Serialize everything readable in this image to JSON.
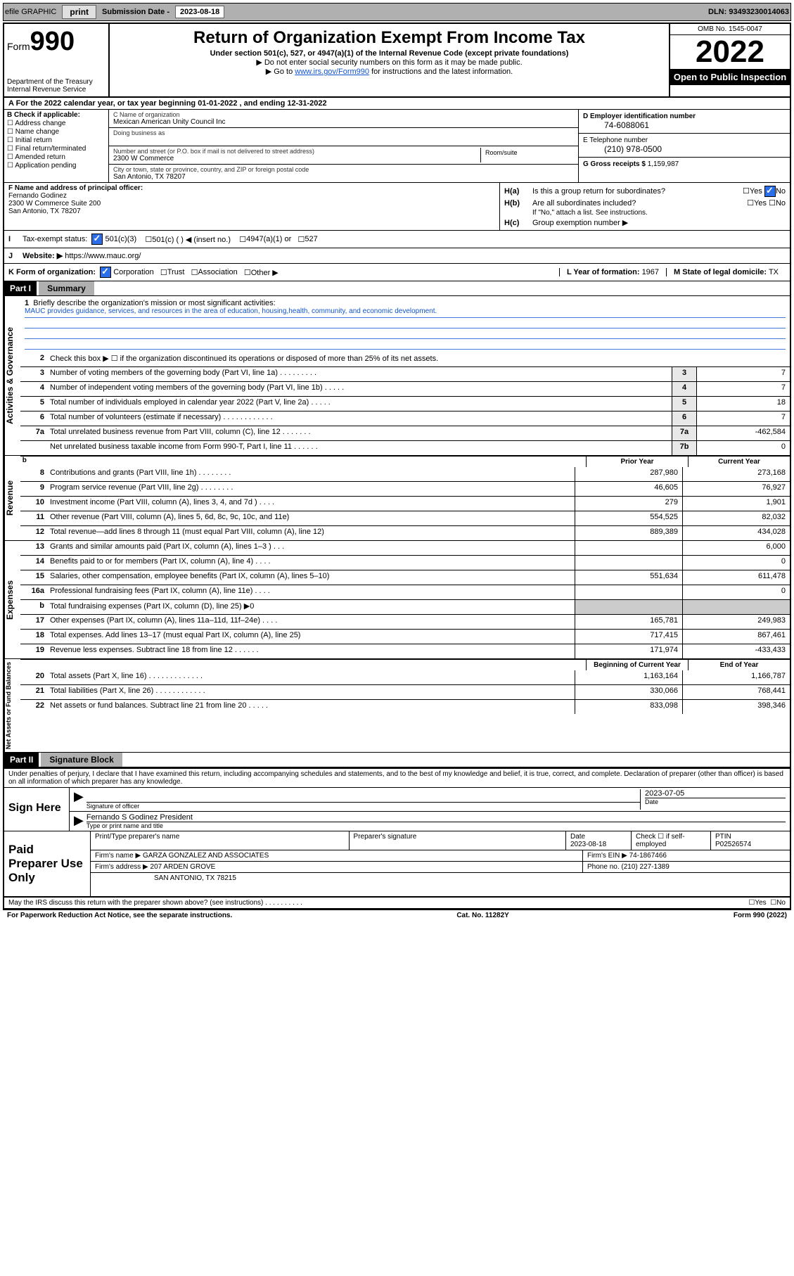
{
  "toolbar": {
    "efile": "efile GRAPHIC",
    "print": "print",
    "sub_label": "Submission Date -",
    "sub_date": "2023-08-18",
    "dln": "DLN: 93493230014063"
  },
  "header": {
    "form_word": "Form",
    "form_num": "990",
    "dept": "Department of the Treasury",
    "irs": "Internal Revenue Service",
    "title": "Return of Organization Exempt From Income Tax",
    "subtitle": "Under section 501(c), 527, or 4947(a)(1) of the Internal Revenue Code (except private foundations)",
    "note1": "▶ Do not enter social security numbers on this form as it may be made public.",
    "note2_pre": "▶ Go to ",
    "note2_link": "www.irs.gov/Form990",
    "note2_post": " for instructions and the latest information.",
    "omb": "OMB No. 1545-0047",
    "year": "2022",
    "open": "Open to Public Inspection"
  },
  "row_a": "A For the 2022 calendar year, or tax year beginning 01-01-2022   , and ending 12-31-2022",
  "col_b": {
    "title": "B Check if applicable:",
    "opts": [
      "Address change",
      "Name change",
      "Initial return",
      "Final return/terminated",
      "Amended return",
      "Application pending"
    ]
  },
  "col_c": {
    "name_lbl": "C Name of organization",
    "name": "Mexican American Unity Council Inc",
    "dba_lbl": "Doing business as",
    "street_lbl": "Number and street (or P.O. box if mail is not delivered to street address)",
    "room_lbl": "Room/suite",
    "street": "2300 W Commerce",
    "city_lbl": "City or town, state or province, country, and ZIP or foreign postal code",
    "city": "San Antonio, TX  78207"
  },
  "col_d": {
    "ein_lbl": "D Employer identification number",
    "ein": "74-6088061",
    "phone_lbl": "E Telephone number",
    "phone": "(210) 978-0500",
    "gross_lbl": "G Gross receipts $",
    "gross": "1,159,987"
  },
  "section_f": {
    "lbl": "F Name and address of principal officer:",
    "name": "Fernando Godinez",
    "addr1": "2300 W Commerce Suite 200",
    "addr2": "San Antonio, TX  78207"
  },
  "section_h": {
    "ha": "Is this a group return for subordinates?",
    "hb": "Are all subordinates included?",
    "hb_note": "If \"No,\" attach a list. See instructions.",
    "hc": "Group exemption number ▶",
    "yes": "Yes",
    "no": "No"
  },
  "row_i": {
    "lbl": "Tax-exempt status:",
    "opts": [
      "501(c)(3)",
      "501(c) (  ) ◀ (insert no.)",
      "4947(a)(1) or",
      "527"
    ]
  },
  "row_j": {
    "lbl": "Website: ▶",
    "val": "https://www.mauc.org/"
  },
  "row_k": {
    "lbl": "K Form of organization:",
    "opts": [
      "Corporation",
      "Trust",
      "Association",
      "Other ▶"
    ]
  },
  "row_l": {
    "year_lbl": "L Year of formation:",
    "year": "1967",
    "state_lbl": "M State of legal domicile:",
    "state": "TX"
  },
  "part1": {
    "label": "Part I",
    "title": "Summary"
  },
  "mission": {
    "q": "Briefly describe the organization's mission or most significant activities:",
    "text": "MAUC provides guidance, services, and resources in the area of education, housing,health, community, and economic development."
  },
  "gov_section": "Activities & Governance",
  "rev_section": "Revenue",
  "exp_section": "Expenses",
  "net_section": "Net Assets or Fund Balances",
  "lines_gov": [
    {
      "num": "2",
      "desc": "Check this box ▶ ☐  if the organization discontinued its operations or disposed of more than 25% of its net assets."
    },
    {
      "num": "3",
      "desc": "Number of voting members of the governing body (Part VI, line 1a)  .  .  .  .  .  .  .  .  .",
      "box": "3",
      "val": "7"
    },
    {
      "num": "4",
      "desc": "Number of independent voting members of the governing body (Part VI, line 1b)  .  .  .  .  .",
      "box": "4",
      "val": "7"
    },
    {
      "num": "5",
      "desc": "Total number of individuals employed in calendar year 2022 (Part V, line 2a)  .  .  .  .  .",
      "box": "5",
      "val": "18"
    },
    {
      "num": "6",
      "desc": "Total number of volunteers (estimate if necessary)  .  .  .  .  .  .  .  .  .  .  .  .",
      "box": "6",
      "val": "7"
    },
    {
      "num": "7a",
      "desc": "Total unrelated business revenue from Part VIII, column (C), line 12  .  .  .  .  .  .  .",
      "box": "7a",
      "val": "-462,584"
    },
    {
      "num": "",
      "desc": "Net unrelated business taxable income from Form 990-T, Part I, line 11  .  .  .  .  .  .",
      "box": "7b",
      "val": "0"
    }
  ],
  "col_hdr": {
    "prior": "Prior Year",
    "current": "Current Year",
    "begin": "Beginning of Current Year",
    "end": "End of Year"
  },
  "lines_rev": [
    {
      "num": "8",
      "desc": "Contributions and grants (Part VIII, line 1h)  .  .  .  .  .  .  .  .",
      "p": "287,980",
      "c": "273,168"
    },
    {
      "num": "9",
      "desc": "Program service revenue (Part VIII, line 2g)  .  .  .  .  .  .  .  .",
      "p": "46,605",
      "c": "76,927"
    },
    {
      "num": "10",
      "desc": "Investment income (Part VIII, column (A), lines 3, 4, and 7d )  .  .  .  .",
      "p": "279",
      "c": "1,901"
    },
    {
      "num": "11",
      "desc": "Other revenue (Part VIII, column (A), lines 5, 6d, 8c, 9c, 10c, and 11e)",
      "p": "554,525",
      "c": "82,032"
    },
    {
      "num": "12",
      "desc": "Total revenue—add lines 8 through 11 (must equal Part VIII, column (A), line 12)",
      "p": "889,389",
      "c": "434,028"
    }
  ],
  "lines_exp": [
    {
      "num": "13",
      "desc": "Grants and similar amounts paid (Part IX, column (A), lines 1–3 )  .  .  .",
      "p": "",
      "c": "6,000"
    },
    {
      "num": "14",
      "desc": "Benefits paid to or for members (Part IX, column (A), line 4)  .  .  .  .",
      "p": "",
      "c": "0"
    },
    {
      "num": "15",
      "desc": "Salaries, other compensation, employee benefits (Part IX, column (A), lines 5–10)",
      "p": "551,634",
      "c": "611,478"
    },
    {
      "num": "16a",
      "desc": "Professional fundraising fees (Part IX, column (A), line 11e)  .  .  .  .",
      "p": "",
      "c": "0"
    },
    {
      "num": "b",
      "desc": "Total fundraising expenses (Part IX, column (D), line 25) ▶0",
      "p": "__shade__",
      "c": "__shade__"
    },
    {
      "num": "17",
      "desc": "Other expenses (Part IX, column (A), lines 11a–11d, 11f–24e)  .  .  .  .",
      "p": "165,781",
      "c": "249,983"
    },
    {
      "num": "18",
      "desc": "Total expenses. Add lines 13–17 (must equal Part IX, column (A), line 25)",
      "p": "717,415",
      "c": "867,461"
    },
    {
      "num": "19",
      "desc": "Revenue less expenses. Subtract line 18 from line 12  .  .  .  .  .  .",
      "p": "171,974",
      "c": "-433,433"
    }
  ],
  "lines_net": [
    {
      "num": "20",
      "desc": "Total assets (Part X, line 16)  .  .  .  .  .  .  .  .  .  .  .  .  .",
      "p": "1,163,164",
      "c": "1,166,787"
    },
    {
      "num": "21",
      "desc": "Total liabilities (Part X, line 26)  .  .  .  .  .  .  .  .  .  .  .  .",
      "p": "330,066",
      "c": "768,441"
    },
    {
      "num": "22",
      "desc": "Net assets or fund balances. Subtract line 21 from line 20  .  .  .  .  .",
      "p": "833,098",
      "c": "398,346"
    }
  ],
  "part2": {
    "label": "Part II",
    "title": "Signature Block"
  },
  "sig": {
    "penalty": "Under penalties of perjury, I declare that I have examined this return, including accompanying schedules and statements, and to the best of my knowledge and belief, it is true, correct, and complete. Declaration of preparer (other than officer) is based on all information of which preparer has any knowledge.",
    "sign_here": "Sign Here",
    "sig_officer_lbl": "Signature of officer",
    "date_lbl": "Date",
    "date": "2023-07-05",
    "name": "Fernando S Godinez President",
    "name_lbl": "Type or print name and title"
  },
  "prep": {
    "title": "Paid Preparer Use Only",
    "r1": {
      "c1": "Print/Type preparer's name",
      "c2": "Preparer's signature",
      "c3": "Date",
      "c3v": "2023-08-18",
      "c4": "Check ☐ if self-employed",
      "c5": "PTIN",
      "c5v": "P02526574"
    },
    "r2": {
      "c1": "Firm's name   ▶",
      "c1v": "GARZA GONZALEZ AND ASSOCIATES",
      "c2": "Firm's EIN ▶",
      "c2v": "74-1867466"
    },
    "r3": {
      "c1": "Firm's address ▶",
      "c1v": "207 ARDEN GROVE",
      "c2": "Phone no.",
      "c2v": "(210) 227-1389"
    },
    "r4": "SAN ANTONIO, TX  78215"
  },
  "footer": {
    "may": "May the IRS discuss this return with the preparer shown above? (see instructions)  .  .  .  .  .  .  .  .  .  .",
    "yes": "Yes",
    "no": "No",
    "pra": "For Paperwork Reduction Act Notice, see the separate instructions.",
    "cat": "Cat. No. 11282Y",
    "form": "Form 990 (2022)"
  }
}
